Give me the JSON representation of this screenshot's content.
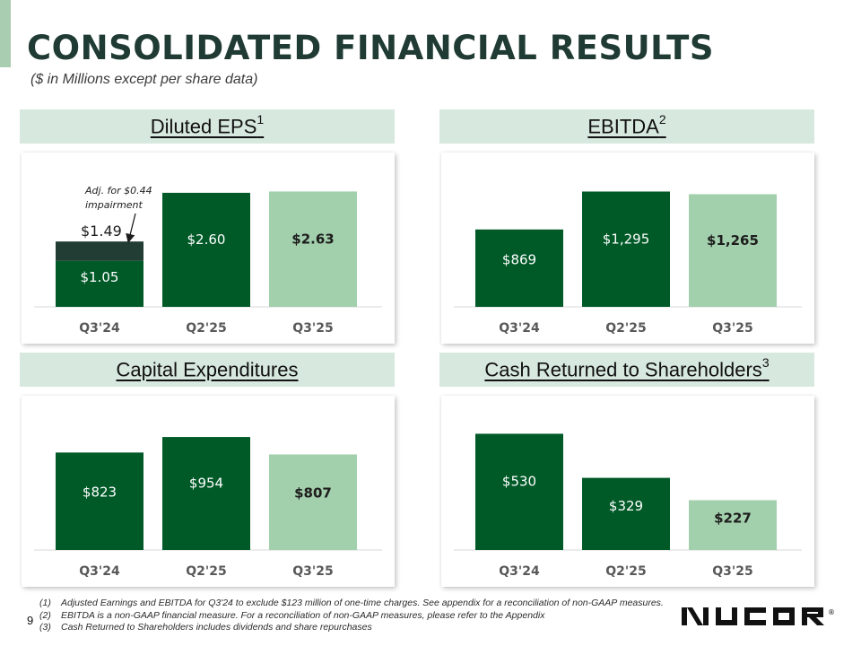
{
  "header": {
    "title": "CONSOLIDATED FINANCIAL RESULTS",
    "subtitle": "($ in Millions except per share data)"
  },
  "sections": [
    {
      "label": "Diluted EPS",
      "sup": "1"
    },
    {
      "label": "EBITDA",
      "sup": "2"
    },
    {
      "label": "Capital Expenditures",
      "sup": ""
    },
    {
      "label": "Cash Returned to Shareholders",
      "sup": "3"
    }
  ],
  "colors": {
    "dark_green": "#005a28",
    "light_green": "#a2cfac",
    "adjustment": "#223d33",
    "header_bg": "#d7e8de"
  },
  "chart_data": [
    {
      "type": "bar",
      "title": "Diluted EPS",
      "categories": [
        "Q3'24",
        "Q2'25",
        "Q3'25"
      ],
      "series": [
        {
          "name": "",
          "values": [
            1.05,
            2.6,
            2.63
          ]
        },
        {
          "name": "Adj. for $0.44 impairment",
          "values": [
            0.44,
            0,
            0
          ]
        }
      ],
      "data_labels": [
        "$1.05",
        "$2.60",
        "$2.63"
      ],
      "stack_total_label": "$1.49",
      "ylim": [
        0,
        2.7
      ]
    },
    {
      "type": "bar",
      "title": "EBITDA",
      "categories": [
        "Q3'24",
        "Q2'25",
        "Q3'25"
      ],
      "series": [
        {
          "name": "",
          "values": [
            869,
            1295,
            1265
          ]
        }
      ],
      "data_labels": [
        "$869",
        "$1,295",
        "$1,265"
      ],
      "ylim": [
        0,
        1330
      ]
    },
    {
      "type": "bar",
      "title": "Capital Expenditures",
      "categories": [
        "Q3'24",
        "Q2'25",
        "Q3'25"
      ],
      "series": [
        {
          "name": "",
          "values": [
            823,
            954,
            807
          ]
        }
      ],
      "data_labels": [
        "$823",
        "$954",
        "$807"
      ],
      "ylim": [
        0,
        1000
      ]
    },
    {
      "type": "bar",
      "title": "Cash Returned to Shareholders",
      "categories": [
        "Q3'24",
        "Q2'25",
        "Q3'25"
      ],
      "series": [
        {
          "name": "",
          "values": [
            530,
            329,
            227
          ]
        }
      ],
      "data_labels": [
        "$530",
        "$329",
        "$227"
      ],
      "ylim": [
        0,
        540
      ]
    }
  ],
  "annotation": {
    "line1": "Adj. for $0.44",
    "line2": "impairment"
  },
  "footnotes": [
    {
      "num": "(1)",
      "text": "Adjusted Earnings and EBITDA for Q3'24 to exclude $123 million of one-time charges. See appendix for a reconciliation of non-GAAP measures."
    },
    {
      "num": "(2)",
      "text": "EBITDA is a non-GAAP financial measure. For a reconciliation of non-GAAP measures, please refer to the Appendix"
    },
    {
      "num": "(3)",
      "text": "Cash Returned to Shareholders includes dividends and share repurchases"
    }
  ],
  "page_number": "9",
  "logo": {
    "text": "NUCOR",
    "mark": "®"
  }
}
